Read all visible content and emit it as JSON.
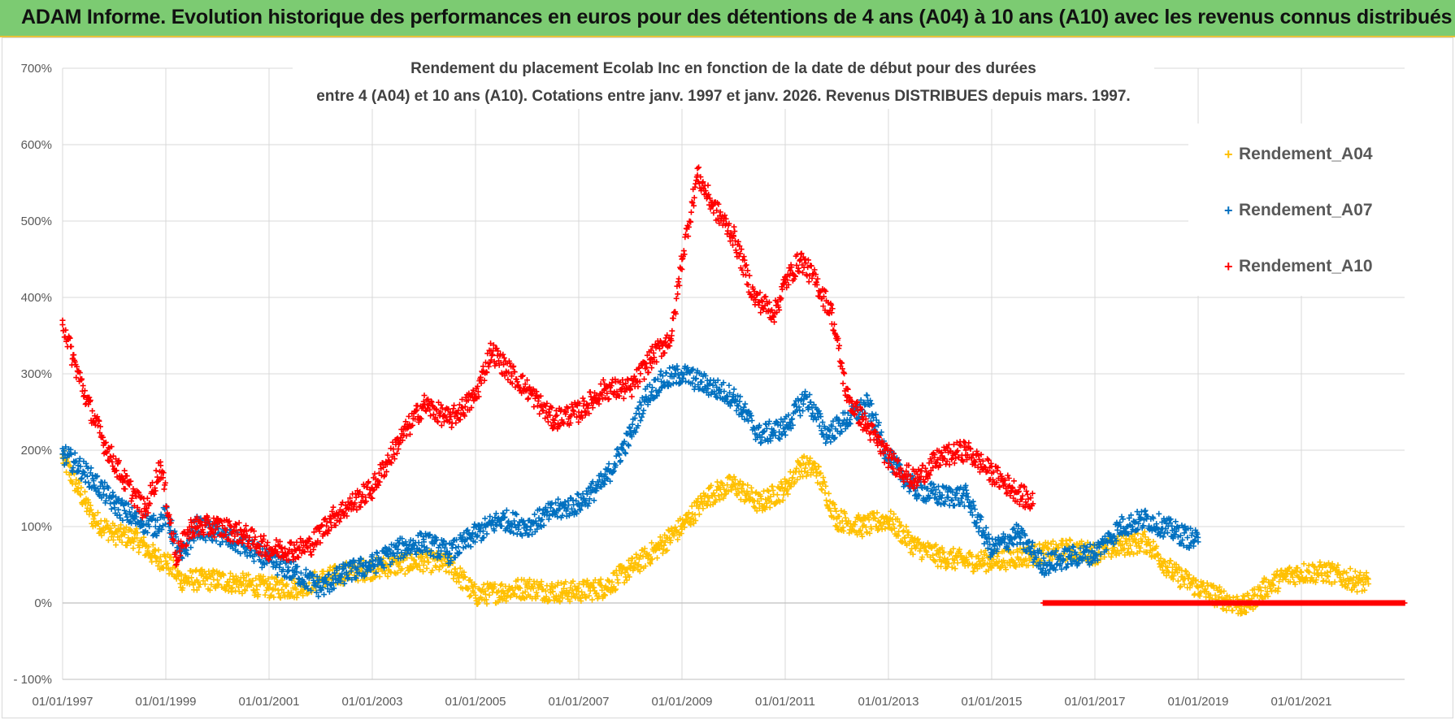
{
  "page": {
    "banner_title": "ADAM Informe. Evolution historique des performances en euros pour des détentions de 4 ans (A04) à 10 ans (A10) avec les revenus connus distribués"
  },
  "colors": {
    "banner": "#7CCB72",
    "A04": "#FFC000",
    "A07": "#0070C0",
    "A10": "#FF0000",
    "grid": "#d9d9d9"
  },
  "chart_data": {
    "type": "scatter",
    "title_line1": "Rendement du placement Ecolab Inc en fonction de la date de début pour des durées",
    "title_line2": "entre 4 (A04) et 10 ans (A10).  Cotations entre janv. 1997 et janv. 2026. Revenus DISTRIBUES depuis mars. 1997.",
    "x_unit": "year",
    "xlim": [
      1997.0,
      2023.0
    ],
    "ylim": [
      -100,
      700
    ],
    "y_ticks": [
      -100,
      0,
      100,
      200,
      300,
      400,
      500,
      600,
      700
    ],
    "y_tick_labels": [
      "- 100%",
      "0%",
      "100%",
      "200%",
      "300%",
      "400%",
      "500%",
      "600%",
      "700%"
    ],
    "x_ticks": [
      1997,
      1999,
      2001,
      2003,
      2005,
      2007,
      2009,
      2011,
      2013,
      2015,
      2017,
      2019,
      2021
    ],
    "x_tick_labels": [
      "01/01/1997",
      "01/01/1999",
      "01/01/2001",
      "01/01/2003",
      "01/01/2005",
      "01/01/2007",
      "01/01/2009",
      "01/01/2011",
      "01/01/2013",
      "01/01/2015",
      "01/01/2017",
      "01/01/2019",
      "01/01/2021"
    ],
    "legend_position": "top-right",
    "series": [
      {
        "name": "Rendement_A04",
        "x": [
          1997.0,
          1997.3,
          1997.6,
          1998.0,
          1998.4,
          1998.8,
          1999.0,
          1999.3,
          1999.6,
          2000.0,
          2000.5,
          2001.0,
          2001.5,
          2002.0,
          2002.5,
          2003.0,
          2003.5,
          2004.0,
          2004.5,
          2005.0,
          2005.5,
          2006.0,
          2006.5,
          2007.0,
          2007.5,
          2008.0,
          2008.5,
          2009.0,
          2009.5,
          2010.0,
          2010.5,
          2011.0,
          2011.3,
          2011.6,
          2012.0,
          2012.5,
          2013.0,
          2013.5,
          2014.0,
          2014.5,
          2015.0,
          2015.5,
          2016.0,
          2016.5,
          2017.0,
          2017.5,
          2018.0,
          2018.5,
          2019.0,
          2019.5,
          2019.9,
          2020.3,
          2020.7,
          2021.0,
          2021.5,
          2022.0,
          2022.3
        ],
        "values": [
          190,
          150,
          110,
          90,
          85,
          60,
          55,
          30,
          30,
          30,
          25,
          20,
          20,
          30,
          40,
          45,
          50,
          55,
          50,
          10,
          15,
          20,
          15,
          15,
          20,
          45,
          70,
          100,
          140,
          155,
          130,
          150,
          180,
          175,
          110,
          100,
          110,
          75,
          60,
          55,
          55,
          60,
          65,
          70,
          65,
          75,
          80,
          40,
          20,
          5,
          -5,
          20,
          35,
          40,
          40,
          30,
          25
        ]
      },
      {
        "name": "Rendement_A07",
        "x": [
          1997.0,
          1997.3,
          1997.6,
          1998.0,
          1998.4,
          1998.8,
          1999.0,
          1999.3,
          1999.6,
          2000.0,
          2000.5,
          2001.0,
          2001.5,
          2002.0,
          2002.5,
          2003.0,
          2003.5,
          2004.0,
          2004.5,
          2005.0,
          2005.5,
          2006.0,
          2006.5,
          2007.0,
          2007.5,
          2008.0,
          2008.3,
          2008.6,
          2009.0,
          2009.5,
          2010.0,
          2010.5,
          2011.0,
          2011.4,
          2011.8,
          2012.2,
          2012.6,
          2013.0,
          2013.5,
          2014.0,
          2014.5,
          2015.0,
          2015.5,
          2016.0,
          2016.5,
          2017.0,
          2017.5,
          2018.0,
          2018.5,
          2019.0
        ],
        "values": [
          195,
          180,
          160,
          130,
          110,
          100,
          115,
          60,
          100,
          90,
          75,
          55,
          40,
          20,
          40,
          50,
          70,
          80,
          65,
          90,
          110,
          100,
          120,
          130,
          160,
          220,
          270,
          290,
          300,
          285,
          270,
          220,
          230,
          270,
          220,
          240,
          260,
          190,
          150,
          140,
          140,
          70,
          90,
          50,
          60,
          65,
          100,
          110,
          95,
          80
        ]
      },
      {
        "name": "Rendement_A10",
        "x": [
          1997.0,
          1997.2,
          1997.5,
          1997.8,
          1998.2,
          1998.6,
          1998.9,
          1999.2,
          1999.5,
          2000.0,
          2000.5,
          2001.0,
          2001.5,
          2001.8,
          2002.2,
          2002.6,
          2003.0,
          2003.5,
          2004.0,
          2004.5,
          2005.0,
          2005.3,
          2005.7,
          2006.0,
          2006.5,
          2007.0,
          2007.5,
          2008.0,
          2008.4,
          2008.8,
          2009.0,
          2009.3,
          2009.6,
          2010.0,
          2010.4,
          2010.8,
          2011.0,
          2011.3,
          2011.6,
          2011.9,
          2012.2,
          2012.5,
          2013.0,
          2013.5,
          2014.0,
          2014.5,
          2015.0,
          2015.4,
          2015.8
        ],
        "values": [
          370,
          320,
          260,
          210,
          160,
          120,
          180,
          60,
          100,
          100,
          90,
          70,
          70,
          75,
          110,
          130,
          150,
          210,
          260,
          240,
          270,
          330,
          300,
          280,
          240,
          250,
          280,
          280,
          320,
          350,
          450,
          560,
          520,
          480,
          400,
          380,
          420,
          450,
          420,
          380,
          270,
          240,
          190,
          160,
          190,
          200,
          170,
          150,
          130
        ]
      },
      {
        "name": "Rendement_A10 (0% segment)",
        "x_range": [
          2016.0,
          2023.0
        ],
        "value": 0
      }
    ]
  }
}
